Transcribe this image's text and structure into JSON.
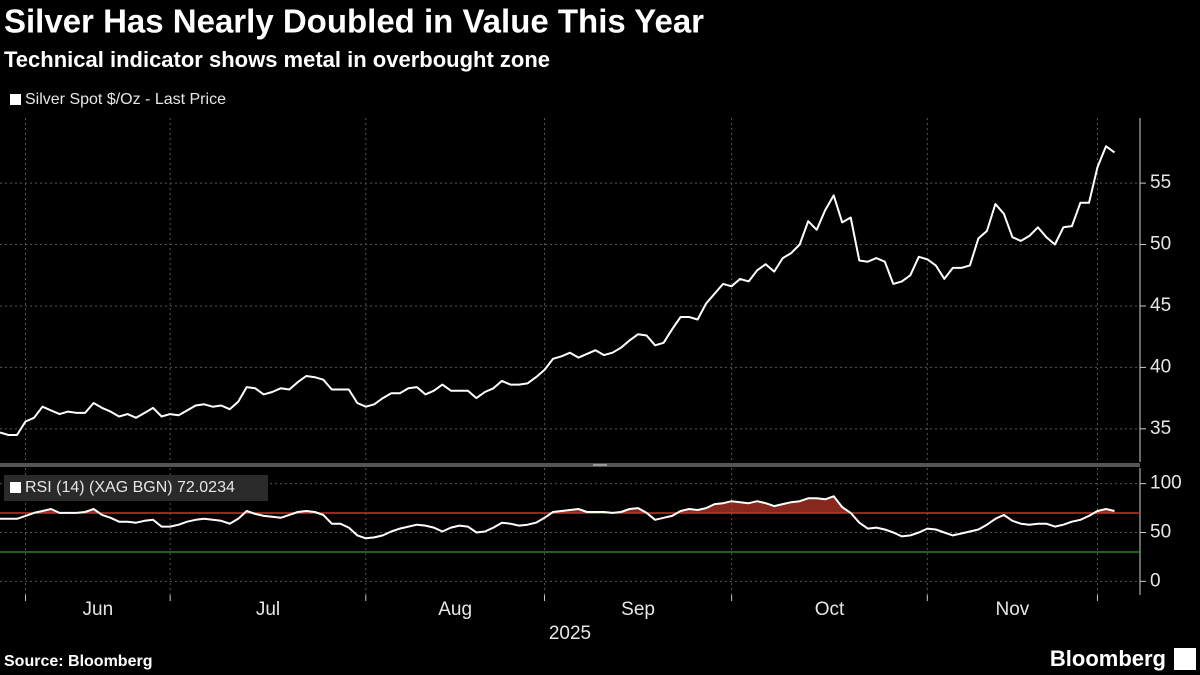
{
  "chart_data": [
    {
      "type": "line",
      "title": "Silver Has Nearly Doubled in Value This Year",
      "subtitle": "Technical indicator shows metal in overbought zone",
      "series": [
        {
          "name": "Silver Spot $/Oz - Last Price",
          "color": "#ffffff",
          "values": [
            34.7,
            34.5,
            34.5,
            35.6,
            35.9,
            36.8,
            36.5,
            36.2,
            36.4,
            36.3,
            36.3,
            37.1,
            36.7,
            36.4,
            36.0,
            36.2,
            35.9,
            36.3,
            36.7,
            36.0,
            36.2,
            36.1,
            36.5,
            36.9,
            37.0,
            36.8,
            36.9,
            36.6,
            37.2,
            38.4,
            38.3,
            37.8,
            38.0,
            38.3,
            38.2,
            38.8,
            39.3,
            39.2,
            39.0,
            38.2,
            38.2,
            38.2,
            37.1,
            36.8,
            37.0,
            37.5,
            37.9,
            37.9,
            38.3,
            38.4,
            37.8,
            38.1,
            38.6,
            38.1,
            38.1,
            38.1,
            37.5,
            38.0,
            38.3,
            38.9,
            38.6,
            38.6,
            38.7,
            39.2,
            39.8,
            40.7,
            40.9,
            41.2,
            40.8,
            41.1,
            41.4,
            41.0,
            41.2,
            41.6,
            42.2,
            42.7,
            42.6,
            41.8,
            42.0,
            43.1,
            44.1,
            44.1,
            43.9,
            45.2,
            46.0,
            46.8,
            46.6,
            47.2,
            47.0,
            47.9,
            48.4,
            47.8,
            48.9,
            49.3,
            50.0,
            51.9,
            51.2,
            52.8,
            54.0,
            51.8,
            52.2,
            48.7,
            48.6,
            48.9,
            48.6,
            46.8,
            47.0,
            47.5,
            49.0,
            48.8,
            48.3,
            47.2,
            48.1,
            48.1,
            48.3,
            50.5,
            51.1,
            53.3,
            52.5,
            50.6,
            50.3,
            50.7,
            51.4,
            50.6,
            50.0,
            51.4,
            51.5,
            53.4,
            53.4,
            56.3,
            58.0,
            57.5
          ]
        }
      ],
      "xlim": [
        0,
        134
      ],
      "ylim": [
        32.3,
        60.3
      ],
      "yticks": [
        35,
        40,
        45,
        50,
        55
      ],
      "xticks": [
        3,
        20,
        43,
        64,
        86,
        109,
        129
      ],
      "grid": true
    },
    {
      "type": "line",
      "series": [
        {
          "name": "RSI (14) (XAG BGN) 72.0234",
          "color": "#ffffff",
          "values": [
            64,
            64,
            64,
            67,
            70,
            72,
            74,
            70,
            70,
            70,
            71,
            74,
            68,
            65,
            61,
            61,
            60,
            62,
            63,
            56,
            56,
            58,
            61,
            63,
            64,
            63,
            62,
            59,
            64,
            72,
            69,
            67,
            66,
            65,
            68,
            71,
            72,
            71,
            68,
            59,
            59,
            55,
            47,
            44,
            45,
            47,
            51,
            54,
            56,
            58,
            57,
            55,
            51,
            55,
            57,
            56,
            50,
            51,
            55,
            60,
            59,
            57,
            58,
            60,
            65,
            71,
            72,
            73,
            74,
            71,
            71,
            71,
            70,
            71,
            74,
            75,
            70,
            63,
            65,
            67,
            72,
            74,
            73,
            75,
            79,
            80,
            82,
            81,
            80,
            82,
            80,
            77,
            79,
            81,
            82,
            85,
            85,
            84,
            87,
            76,
            70,
            60,
            54,
            55,
            53,
            50,
            46,
            47,
            50,
            54,
            53,
            50,
            47,
            49,
            51,
            53,
            58,
            64,
            68,
            62,
            59,
            58,
            59,
            59,
            56,
            58,
            61,
            63,
            67,
            72,
            74,
            72
          ]
        }
      ],
      "overbought": 70,
      "overbought_color": "#c0392b",
      "oversold": 30,
      "oversold_color": "#2e9b3a",
      "xlim": [
        0,
        134
      ],
      "ylim": [
        -14,
        116
      ],
      "yticks": [
        0,
        50,
        100
      ],
      "xticks": [
        {
          "value": 3,
          "label": "Jun"
        },
        {
          "value": 20,
          "label": "Jul"
        },
        {
          "value": 43,
          "label": "Aug"
        },
        {
          "value": 64,
          "label": "Sep"
        },
        {
          "value": 86,
          "label": "Oct"
        },
        {
          "value": 109,
          "label": "Nov"
        },
        {
          "value": 129,
          "label": ""
        }
      ],
      "xlabel": "2025",
      "grid": true
    }
  ],
  "source": "Source: Bloomberg",
  "brand": "Bloomberg"
}
